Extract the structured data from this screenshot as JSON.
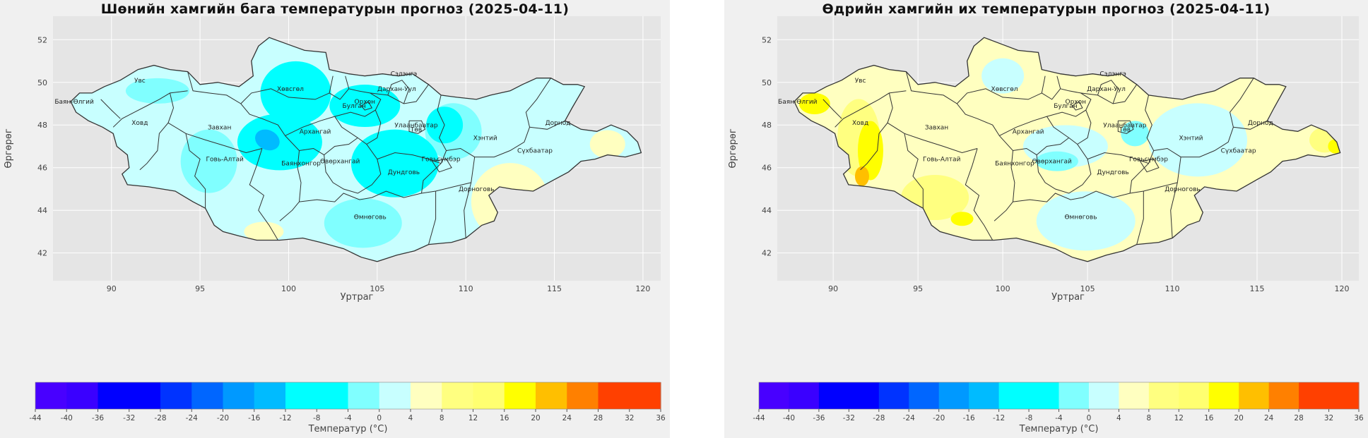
{
  "panels": [
    {
      "title": "Шөнийн хамгийн бага температурын прогноз (2025-04-11)",
      "scheme": "min"
    },
    {
      "title": "Өдрийн хамгийн их температурын прогноз (2025-04-11)",
      "scheme": "max"
    }
  ],
  "axes": {
    "xlabel": "Уртраг",
    "ylabel": "Өргөрөг",
    "xticks": [
      90,
      95,
      100,
      105,
      110,
      115,
      120
    ],
    "yticks": [
      42,
      44,
      46,
      48,
      50,
      52
    ],
    "xlim": [
      86.7,
      121
    ],
    "ylim": [
      40.7,
      53.1
    ]
  },
  "colorbar": {
    "label": "Температур (°C)",
    "ticks": [
      -44,
      -40,
      -36,
      -32,
      -28,
      -24,
      -20,
      -16,
      -12,
      -8,
      -4,
      0,
      4,
      8,
      12,
      16,
      20,
      24,
      28,
      32,
      36
    ],
    "colors": [
      "#4800ff",
      "#3a00ff",
      "#0000ff",
      "#0000ff",
      "#0033ff",
      "#0066ff",
      "#0099ff",
      "#00bbff",
      "#00ffff",
      "#00ffff",
      "#80ffff",
      "#c8ffff",
      "#ffffc0",
      "#ffff80",
      "#ffff70",
      "#ffff00",
      "#ffbf00",
      "#ff8000",
      "#ff4000",
      "#ff4000",
      "#ff0000"
    ]
  },
  "provinces": [
    {
      "name": "Увс",
      "lon": 91.6,
      "lat": 50.0
    },
    {
      "name": "Баян-Өлгий",
      "lon": 87.9,
      "lat": 49.0
    },
    {
      "name": "Ховд",
      "lon": 91.6,
      "lat": 48.0
    },
    {
      "name": "Завхан",
      "lon": 96.1,
      "lat": 47.8
    },
    {
      "name": "Говь-Алтай",
      "lon": 96.4,
      "lat": 46.3
    },
    {
      "name": "Хөвсгөл",
      "lon": 100.1,
      "lat": 49.6
    },
    {
      "name": "Архангай",
      "lon": 101.5,
      "lat": 47.6
    },
    {
      "name": "Баянхонгор",
      "lon": 100.7,
      "lat": 46.1
    },
    {
      "name": "Өвөрхангай",
      "lon": 102.9,
      "lat": 46.2
    },
    {
      "name": "Булган",
      "lon": 103.7,
      "lat": 48.8
    },
    {
      "name": "Орхон",
      "lon": 104.3,
      "lat": 49.0
    },
    {
      "name": "Сэлэнгэ",
      "lon": 106.5,
      "lat": 50.3
    },
    {
      "name": "Дархан-Уул",
      "lon": 106.1,
      "lat": 49.6
    },
    {
      "name": "Улаанбаатар",
      "lon": 107.2,
      "lat": 47.9
    },
    {
      "name": "Төв",
      "lon": 107.2,
      "lat": 47.7
    },
    {
      "name": "Хэнтий",
      "lon": 111.1,
      "lat": 47.3
    },
    {
      "name": "Дорнод",
      "lon": 115.2,
      "lat": 48.0
    },
    {
      "name": "Сүхбаатар",
      "lon": 113.9,
      "lat": 46.7
    },
    {
      "name": "Дундговь",
      "lon": 106.5,
      "lat": 45.7
    },
    {
      "name": "Говьсүмбэр",
      "lon": 108.6,
      "lat": 46.3
    },
    {
      "name": "Дорноговь",
      "lon": 110.6,
      "lat": 44.9
    },
    {
      "name": "Өмнөговь",
      "lon": 104.6,
      "lat": 43.6
    }
  ]
}
